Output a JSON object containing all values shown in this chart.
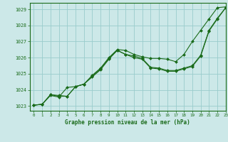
{
  "title": "Graphe pression niveau de la mer (hPa)",
  "bg_color": "#cce8e8",
  "grid_color": "#99cccc",
  "line_color": "#1a6b1a",
  "marker_color": "#1a6b1a",
  "xlim": [
    -0.5,
    23
  ],
  "ylim": [
    1022.7,
    1029.4
  ],
  "yticks": [
    1023,
    1024,
    1025,
    1026,
    1027,
    1028,
    1029
  ],
  "xticks": [
    0,
    1,
    2,
    3,
    4,
    5,
    6,
    7,
    8,
    9,
    10,
    11,
    12,
    13,
    14,
    15,
    16,
    17,
    18,
    19,
    20,
    21,
    22,
    23
  ],
  "series": [
    [
      1023.05,
      1023.1,
      1023.7,
      1023.6,
      1023.6,
      1024.2,
      1024.35,
      1024.9,
      1025.35,
      1026.0,
      1026.5,
      1026.45,
      1026.2,
      1026.05,
      1025.95,
      1025.95,
      1025.9,
      1025.75,
      1026.2,
      1027.0,
      1027.7,
      1028.4,
      1029.1,
      1029.15
    ],
    [
      1023.05,
      1023.1,
      1023.7,
      1023.65,
      1023.6,
      1024.2,
      1024.35,
      1024.85,
      1025.3,
      1025.95,
      1026.45,
      1026.2,
      1026.1,
      1025.95,
      1025.4,
      1025.35,
      1025.2,
      1025.2,
      1025.35,
      1025.5,
      1026.15,
      1027.7,
      1028.45,
      1029.1
    ],
    [
      1023.05,
      1023.1,
      1023.65,
      1023.55,
      1024.15,
      1024.2,
      1024.35,
      1024.8,
      1025.25,
      1025.9,
      1026.45,
      1026.2,
      1026.0,
      1025.9,
      1025.35,
      1025.3,
      1025.15,
      1025.15,
      1025.3,
      1025.45,
      1026.1,
      1027.65,
      1028.4,
      1029.1
    ]
  ]
}
